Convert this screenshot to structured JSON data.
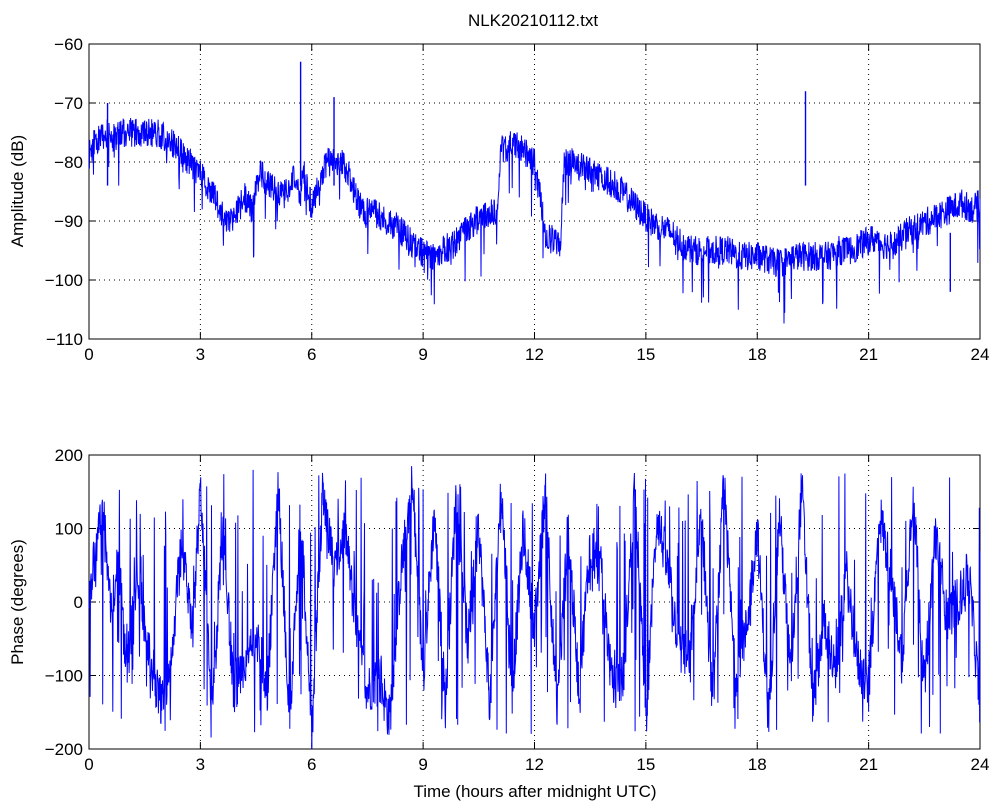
{
  "figure": {
    "title": "NLK20210112.txt",
    "xlabel": "Time (hours after midnight UTC)"
  },
  "chart_data": [
    {
      "type": "line",
      "title": "NLK20210112.txt",
      "xlabel": "",
      "ylabel": "Amplitude (dB)",
      "xlim": [
        0,
        24
      ],
      "ylim": [
        -110,
        -60
      ],
      "xticks": [
        0,
        3,
        6,
        9,
        12,
        15,
        18,
        21,
        24
      ],
      "yticks": [
        -110,
        -100,
        -90,
        -80,
        -70,
        -60
      ],
      "xtick_labels": [
        "0",
        "3",
        "6",
        "9",
        "12",
        "15",
        "18",
        "21",
        "24"
      ],
      "ytick_labels": [
        "−110",
        "−100",
        "−90",
        "−80",
        "−70",
        "−60"
      ],
      "grid": true,
      "line_color": "#0000ff",
      "series": [
        {
          "x": [
            0,
            0.1,
            0.3,
            0.5,
            0.7,
            0.9,
            1.2,
            1.5,
            1.8,
            2.1,
            2.4,
            2.7,
            3.0,
            3.2,
            3.4,
            3.6,
            3.8,
            4.0,
            4.2,
            4.4,
            4.6,
            4.9,
            5.2,
            5.5,
            5.7,
            5.8,
            6.0,
            6.2,
            6.4,
            6.6,
            6.8,
            7.0,
            7.2,
            7.4,
            7.6,
            7.8,
            8.0,
            8.3,
            8.6,
            8.9,
            9.2,
            9.5,
            9.8,
            10.1,
            10.4,
            10.7,
            11.0,
            11.1,
            11.4,
            11.7,
            12.0,
            12.2,
            12.3,
            12.5,
            12.7,
            12.8,
            13.0,
            13.3,
            13.6,
            13.9,
            14.2,
            14.5,
            14.8,
            15.1,
            15.4,
            15.7,
            16.0,
            16.3,
            16.6,
            16.9,
            17.2,
            17.5,
            17.8,
            18.1,
            18.4,
            18.7,
            19.0,
            19.3,
            19.6,
            19.9,
            20.2,
            20.5,
            20.8,
            21.1,
            21.4,
            21.7,
            22.0,
            22.3,
            22.6,
            22.9,
            23.2,
            23.5,
            23.8,
            24.0
          ],
          "y": [
            -79,
            -77,
            -76,
            -75,
            -76,
            -75,
            -75,
            -75,
            -75,
            -76,
            -78,
            -80,
            -82,
            -84,
            -86,
            -89,
            -90,
            -88,
            -86,
            -88,
            -82,
            -84,
            -86,
            -83,
            -85,
            -82,
            -88,
            -83,
            -80,
            -80,
            -80,
            -82,
            -86,
            -89,
            -88,
            -89,
            -90,
            -91,
            -93,
            -95,
            -96,
            -95,
            -94,
            -92,
            -90,
            -89,
            -88,
            -78,
            -77,
            -78,
            -80,
            -88,
            -93,
            -93,
            -94,
            -80,
            -80,
            -81,
            -82,
            -83,
            -84,
            -86,
            -88,
            -90,
            -91,
            -92,
            -94,
            -95,
            -95,
            -95,
            -95,
            -96,
            -96,
            -96,
            -97,
            -97,
            -96,
            -96,
            -96,
            -96,
            -95,
            -95,
            -94,
            -93,
            -94,
            -94,
            -92,
            -91,
            -90,
            -89,
            -88,
            -87,
            -88,
            -87
          ]
        }
      ],
      "spikes": [
        {
          "x": 0.5,
          "y": -70
        },
        {
          "x": 5.7,
          "y": -63
        },
        {
          "x": 6.6,
          "y": -69
        },
        {
          "x": 19.3,
          "y": -68
        },
        {
          "x": 23.2,
          "y": -102
        }
      ]
    },
    {
      "type": "line",
      "title": "",
      "xlabel": "Time (hours after midnight UTC)",
      "ylabel": "Phase (degrees)",
      "xlim": [
        0,
        24
      ],
      "ylim": [
        -200,
        200
      ],
      "xticks": [
        0,
        3,
        6,
        9,
        12,
        15,
        18,
        21,
        24
      ],
      "yticks": [
        -200,
        -100,
        0,
        100,
        200
      ],
      "xtick_labels": [
        "0",
        "3",
        "6",
        "9",
        "12",
        "15",
        "18",
        "21",
        "24"
      ],
      "ytick_labels": [
        "−200",
        "−100",
        "0",
        "100",
        "200"
      ],
      "grid": true,
      "line_color": "#0000ff",
      "series": [
        {
          "x": [
            0,
            0.2,
            0.4,
            0.6,
            0.8,
            1.0,
            1.3,
            1.6,
            1.9,
            2.2,
            2.5,
            2.8,
            3.0,
            3.3,
            3.6,
            3.9,
            4.2,
            4.5,
            4.8,
            5.1,
            5.4,
            5.7,
            6.0,
            6.3,
            6.6,
            6.9,
            7.2,
            7.5,
            7.8,
            8.1,
            8.4,
            8.7,
            9.0,
            9.3,
            9.6,
            9.9,
            10.2,
            10.5,
            10.8,
            11.1,
            11.4,
            11.7,
            12.0,
            12.3,
            12.6,
            12.9,
            13.2,
            13.5,
            13.8,
            14.1,
            14.4,
            14.7,
            15.0,
            15.3,
            15.6,
            15.9,
            16.2,
            16.5,
            16.8,
            17.1,
            17.4,
            17.7,
            18.0,
            18.3,
            18.6,
            18.9,
            19.2,
            19.5,
            19.8,
            20.1,
            20.4,
            20.7,
            21.0,
            21.3,
            21.6,
            21.9,
            22.2,
            22.5,
            22.8,
            23.1,
            23.4,
            23.7,
            24.0
          ],
          "y": [
            0,
            80,
            120,
            -20,
            60,
            -100,
            40,
            -60,
            -140,
            -80,
            80,
            -40,
            160,
            -160,
            100,
            -120,
            -80,
            -40,
            -120,
            160,
            -160,
            120,
            -180,
            160,
            40,
            100,
            -40,
            -120,
            -100,
            -160,
            40,
            160,
            -100,
            120,
            -140,
            160,
            -60,
            100,
            -140,
            160,
            -120,
            100,
            -40,
            160,
            -160,
            100,
            -120,
            80,
            40,
            -120,
            -100,
            160,
            -160,
            120,
            40,
            -60,
            -80,
            120,
            -140,
            160,
            -100,
            -40,
            100,
            -160,
            120,
            -100,
            160,
            -140,
            -20,
            -100,
            40,
            -80,
            -120,
            120,
            40,
            -80,
            160,
            -120,
            100,
            -20,
            0,
            40,
            -140
          ]
        }
      ]
    }
  ]
}
